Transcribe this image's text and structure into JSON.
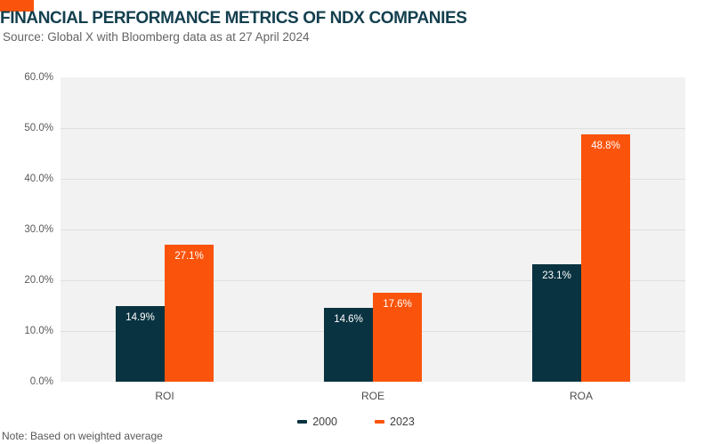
{
  "title": "FINANCIAL PERFORMANCE METRICS OF NDX COMPANIES",
  "source": "Source: Global X with Bloomberg data as at 27 April 2024",
  "note": "Note: Based on weighted average",
  "colors": {
    "accent": "#fa540c",
    "title": "#133f4e",
    "plot_bg": "#f2f2f2",
    "gridline": "#e0e0e0",
    "axis_text": "#58595b",
    "series_2000": "#093340",
    "series_2023": "#fa540c",
    "bar_label": "#ffffff"
  },
  "chart_data": {
    "type": "bar",
    "title": "FINANCIAL PERFORMANCE METRICS OF NDX COMPANIES",
    "subtitle": "Source: Global X with Bloomberg data as at 27 April 2024",
    "categories": [
      "ROI",
      "ROE",
      "ROA"
    ],
    "series": [
      {
        "name": "2000",
        "color": "#093340",
        "values": [
          14.9,
          14.6,
          23.1
        ],
        "labels": [
          "14.9%",
          "14.6%",
          "23.1%"
        ]
      },
      {
        "name": "2023",
        "color": "#fa540c",
        "values": [
          27.1,
          17.6,
          48.8
        ],
        "labels": [
          "27.1%",
          "17.6%",
          "48.8%"
        ]
      }
    ],
    "xlabel": "",
    "ylabel": "",
    "ylim": [
      0,
      60
    ],
    "ytick_step": 10,
    "ytick_labels": [
      "0.0%",
      "10.0%",
      "20.0%",
      "30.0%",
      "40.0%",
      "50.0%",
      "60.0%"
    ],
    "grid": true,
    "legend_position": "bottom",
    "annotation": "Note: Based on weighted average"
  }
}
